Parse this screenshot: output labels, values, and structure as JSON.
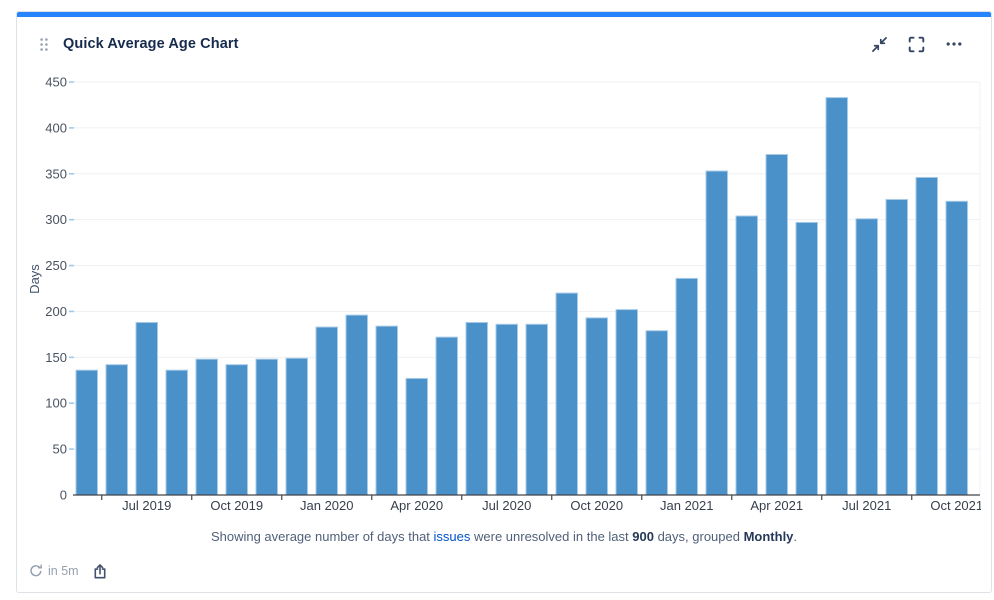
{
  "card": {
    "title": "Quick Average Age Chart",
    "header_icons": [
      "drag-handle-icon",
      "minimize-icon",
      "expand-icon",
      "more-icon"
    ]
  },
  "colors": {
    "accent_strip": "#2684FF",
    "bar": "#4a90c9",
    "bar_edge": "#a8cbe8",
    "link": "#0052CC"
  },
  "chart_data": {
    "type": "bar",
    "title": "Quick Average Age Chart",
    "xlabel": "",
    "ylabel": "Days",
    "ylim": [
      0,
      450
    ],
    "y_ticks": [
      0,
      50,
      100,
      150,
      200,
      250,
      300,
      350,
      400,
      450
    ],
    "grid": true,
    "legend": false,
    "categories": [
      "May 2019",
      "Jun 2019",
      "Jul 2019",
      "Aug 2019",
      "Sep 2019",
      "Oct 2019",
      "Nov 2019",
      "Dec 2019",
      "Jan 2020",
      "Feb 2020",
      "Mar 2020",
      "Apr 2020",
      "May 2020",
      "Jun 2020",
      "Jul 2020",
      "Aug 2020",
      "Sep 2020",
      "Oct 2020",
      "Nov 2020",
      "Dec 2020",
      "Jan 2021",
      "Feb 2021",
      "Mar 2021",
      "Apr 2021",
      "May 2021",
      "Jun 2021",
      "Jul 2021",
      "Aug 2021",
      "Sep 2021",
      "Oct 2021"
    ],
    "values": [
      136,
      142,
      188,
      136,
      148,
      142,
      148,
      149,
      183,
      196,
      184,
      127,
      172,
      188,
      186,
      186,
      220,
      193,
      202,
      179,
      236,
      353,
      304,
      371,
      297,
      433,
      301,
      322,
      346,
      320
    ],
    "x_tick_labels": [
      "Jul 2019",
      "Oct 2019",
      "Jan 2020",
      "Apr 2020",
      "Jul 2020",
      "Oct 2020",
      "Jan 2021",
      "Apr 2021",
      "Jul 2021",
      "Oct 2021"
    ],
    "bar_color": "#4a90c9",
    "bar_edge_color": "#a8cbe8"
  },
  "caption": {
    "text_1": "Showing average number of days that ",
    "link": "issues",
    "text_2": " were unresolved in the last ",
    "bold_days": "900",
    "text_3": " days, grouped ",
    "bold_grouping": "Monthly",
    "text_4": "."
  },
  "footer": {
    "refresh_in": "in 5m"
  }
}
